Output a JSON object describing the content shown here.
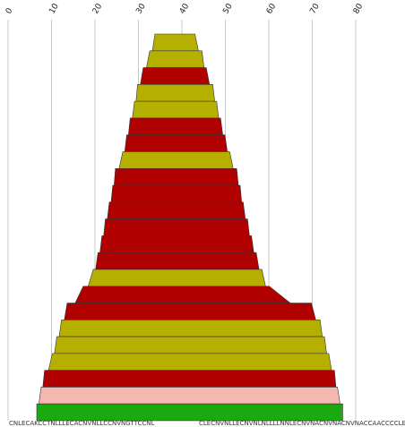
{
  "chart_data": {
    "type": "bar",
    "orientation": "horizontal-centered",
    "title": "",
    "xlabel": "",
    "ylabel": "",
    "x_ticks": [
      0,
      10,
      20,
      30,
      40,
      50,
      60,
      70,
      80
    ],
    "xlim": [
      0,
      80
    ],
    "grid": "vertical",
    "bars": [
      {
        "start": 33.8,
        "end": 43.0,
        "color": "#b5b000"
      },
      {
        "start": 32.6,
        "end": 44.6,
        "color": "#b5b000"
      },
      {
        "start": 31.1,
        "end": 45.6,
        "color": "#b00000"
      },
      {
        "start": 29.8,
        "end": 47.1,
        "color": "#b5b000"
      },
      {
        "start": 29.1,
        "end": 48.0,
        "color": "#b5b000"
      },
      {
        "start": 28.1,
        "end": 48.9,
        "color": "#b00000"
      },
      {
        "start": 27.3,
        "end": 49.9,
        "color": "#b00000"
      },
      {
        "start": 26.4,
        "end": 51.0,
        "color": "#b5b000"
      },
      {
        "start": 24.7,
        "end": 52.6,
        "color": "#b00000"
      },
      {
        "start": 24.1,
        "end": 53.4,
        "color": "#b00000"
      },
      {
        "start": 23.3,
        "end": 54.1,
        "color": "#b00000"
      },
      {
        "start": 22.4,
        "end": 55.1,
        "color": "#b00000"
      },
      {
        "start": 21.6,
        "end": 56.0,
        "color": "#b00000"
      },
      {
        "start": 20.7,
        "end": 57.1,
        "color": "#b00000"
      },
      {
        "start": 19.6,
        "end": 58.4,
        "color": "#b5b000"
      },
      {
        "start": 17.3,
        "end": 60.1,
        "color": "#b00000"
      },
      {
        "start": 13.6,
        "end": 69.8,
        "color": "#b00000"
      },
      {
        "start": 12.3,
        "end": 71.8,
        "color": "#b5b000"
      },
      {
        "start": 11.2,
        "end": 72.8,
        "color": "#b5b000"
      },
      {
        "start": 10.2,
        "end": 73.8,
        "color": "#b5b000"
      },
      {
        "start": 8.4,
        "end": 75.1,
        "color": "#b00000"
      },
      {
        "start": 7.6,
        "end": 75.8,
        "color": "#f4b8b0"
      },
      {
        "start": 6.6,
        "end": 77.0,
        "color": "#1aaa10"
      }
    ]
  },
  "bottom_labels": {
    "left": "CNLECAKCCTNLLLECACNVNLLCCNVNGTTCCNL",
    "right": "CLECNVNLLECNVNLNLLLLNNLECNVNACNVNACNVNACCAACCCCLE"
  },
  "colors": {
    "olive": "#b5b000",
    "red": "#b00000",
    "pink": "#f4b8b0",
    "green": "#1aaa10",
    "grid": "#c8c8c8"
  }
}
